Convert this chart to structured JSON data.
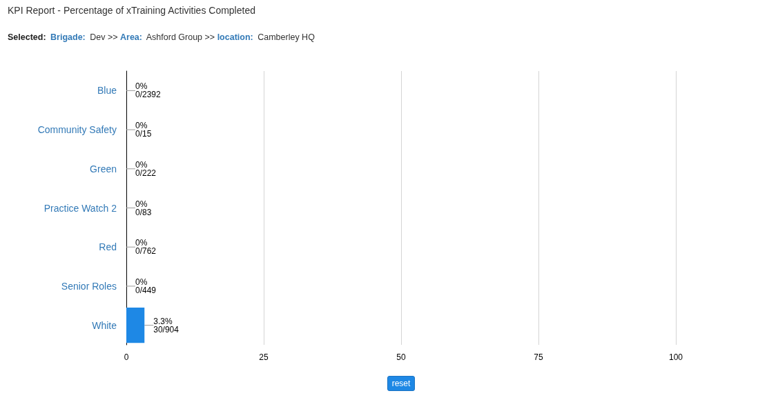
{
  "chart_data": {
    "type": "bar",
    "orientation": "horizontal",
    "title": "KPI Report - Percentage of xTraining Activities Completed",
    "subtitle": "Selected: Brigade: Dev >> Area: Ashford Group >> location: Camberley HQ",
    "categories": [
      "Blue",
      "Community Safety",
      "Green",
      "Practice Watch 2",
      "Red",
      "Senior Roles",
      "White"
    ],
    "values": [
      0,
      0,
      0,
      0,
      0,
      0,
      3.3
    ],
    "value_labels": [
      "0%\n0/2392",
      "0%\n0/15",
      "0%\n0/222",
      "0%\n0/83",
      "0%\n0/762",
      "0%\n0/449",
      "3.3%\n30/904"
    ],
    "color": "#1e88e5",
    "xlim": [
      0,
      100
    ],
    "xticks": [
      0,
      25,
      50,
      75,
      100
    ],
    "grid": "x",
    "annotations": [
      "reset"
    ]
  }
}
